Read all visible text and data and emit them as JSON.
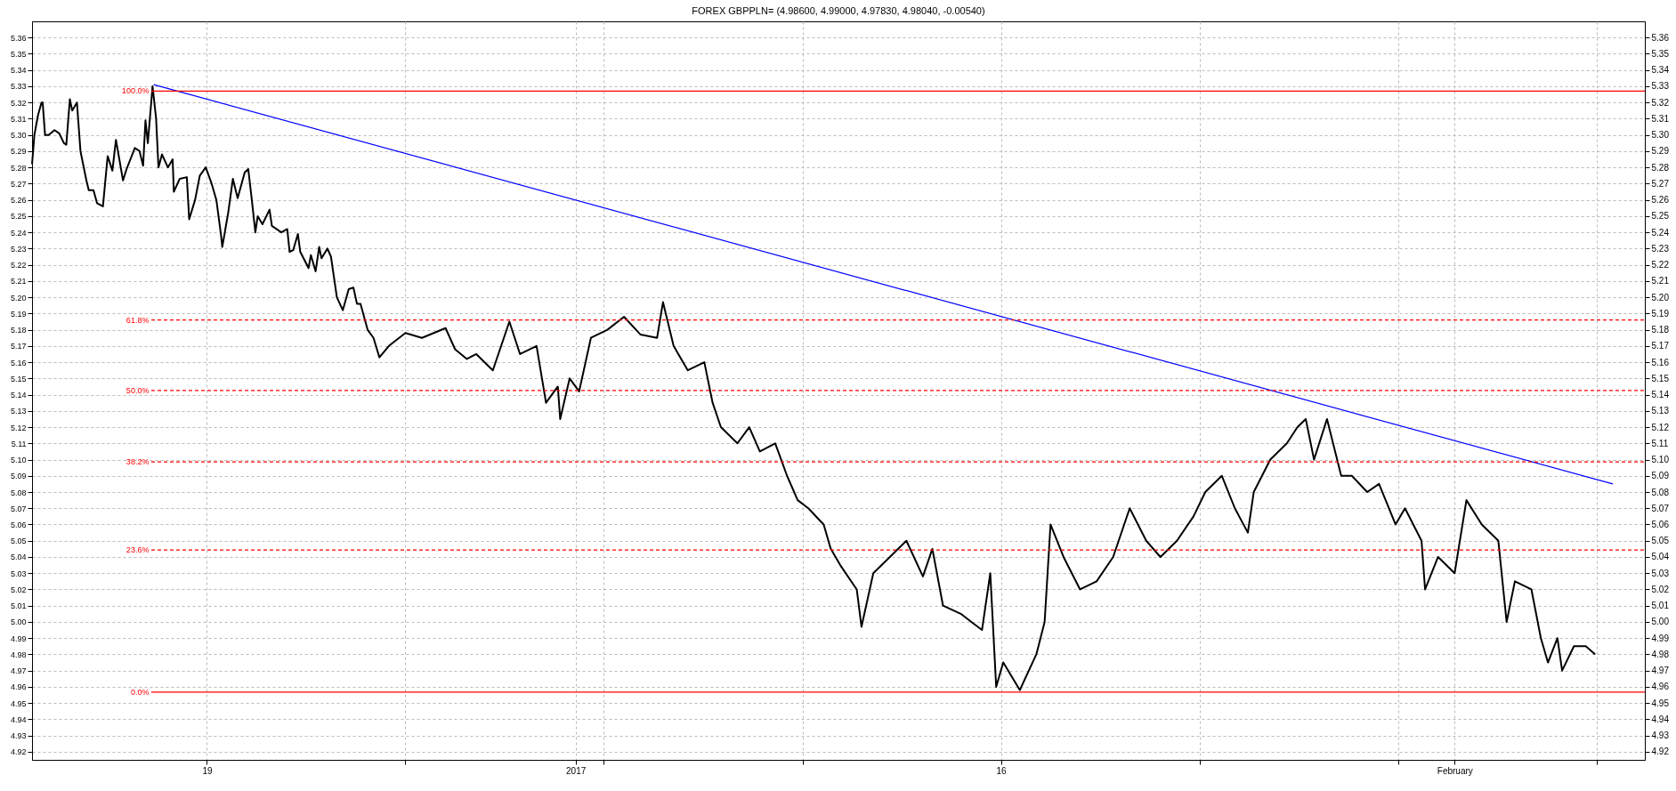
{
  "chart_data": {
    "type": "line",
    "title": "FOREX GBPPLN= (4.98600, 4.99000, 4.97830, 4.98040, -0.00540)",
    "xlim": [
      "2016-12-12T20:00",
      "2017-02-07T17:00"
    ],
    "xticks": [
      {
        "value": "2016-12-19",
        "label": "19"
      },
      {
        "value": "2016-12-26",
        "label": null
      },
      {
        "value": "2017-01-01",
        "label": "2017"
      },
      {
        "value": "2017-01-02",
        "label": null
      },
      {
        "value": "2017-01-09",
        "label": null
      },
      {
        "value": "2017-01-16",
        "label": "16"
      },
      {
        "value": "2017-01-23",
        "label": null
      },
      {
        "value": "2017-01-30",
        "label": null
      },
      {
        "value": "2017-02-01",
        "label": "February"
      },
      {
        "value": "2017-02-06",
        "label": null
      }
    ],
    "ylim": [
      4.915,
      5.37
    ],
    "yticks": [
      {
        "value": 4.92,
        "label": "4.92"
      },
      {
        "value": 4.93,
        "label": "4.93"
      },
      {
        "value": 4.94,
        "label": "4.94"
      },
      {
        "value": 4.95,
        "label": "4.95"
      },
      {
        "value": 4.96,
        "label": "4.96"
      },
      {
        "value": 4.97,
        "label": "4.97"
      },
      {
        "value": 4.98,
        "label": "4.98"
      },
      {
        "value": 4.99,
        "label": "4.99"
      },
      {
        "value": 5.0,
        "label": "5.00"
      },
      {
        "value": 5.01,
        "label": "5.01"
      },
      {
        "value": 5.02,
        "label": "5.02"
      },
      {
        "value": 5.03,
        "label": "5.03"
      },
      {
        "value": 5.04,
        "label": "5.04"
      },
      {
        "value": 5.05,
        "label": "5.05"
      },
      {
        "value": 5.06,
        "label": "5.06"
      },
      {
        "value": 5.07,
        "label": "5.07"
      },
      {
        "value": 5.08,
        "label": "5.08"
      },
      {
        "value": 5.09,
        "label": "5.09"
      },
      {
        "value": 5.1,
        "label": "5.10"
      },
      {
        "value": 5.11,
        "label": "5.11"
      },
      {
        "value": 5.12,
        "label": "5.12"
      },
      {
        "value": 5.13,
        "label": "5.13"
      },
      {
        "value": 5.14,
        "label": "5.14"
      },
      {
        "value": 5.15,
        "label": "5.15"
      },
      {
        "value": 5.16,
        "label": "5.16"
      },
      {
        "value": 5.17,
        "label": "5.17"
      },
      {
        "value": 5.18,
        "label": "5.18"
      },
      {
        "value": 5.19,
        "label": "5.19"
      },
      {
        "value": 5.2,
        "label": "5.20"
      },
      {
        "value": 5.21,
        "label": "5.21"
      },
      {
        "value": 5.22,
        "label": "5.22"
      },
      {
        "value": 5.23,
        "label": "5.23"
      },
      {
        "value": 5.24,
        "label": "5.24"
      },
      {
        "value": 5.25,
        "label": "5.25"
      },
      {
        "value": 5.26,
        "label": "5.26"
      },
      {
        "value": 5.27,
        "label": "5.27"
      },
      {
        "value": 5.28,
        "label": "5.28"
      },
      {
        "value": 5.29,
        "label": "5.29"
      },
      {
        "value": 5.3,
        "label": "5.30"
      },
      {
        "value": 5.31,
        "label": "5.31"
      },
      {
        "value": 5.32,
        "label": "5.32"
      },
      {
        "value": 5.33,
        "label": "5.33"
      },
      {
        "value": 5.34,
        "label": "5.34"
      },
      {
        "value": 5.35,
        "label": "5.35"
      },
      {
        "value": 5.36,
        "label": "5.36"
      }
    ],
    "y2lim": [
      4.915,
      5.37
    ],
    "y2ticks": [
      {
        "value": 4.92,
        "label": "4.92"
      },
      {
        "value": 4.93,
        "label": "4.93"
      },
      {
        "value": 4.94,
        "label": "4.94"
      },
      {
        "value": 4.95,
        "label": "4.95"
      },
      {
        "value": 4.96,
        "label": "4.96"
      },
      {
        "value": 4.97,
        "label": "4.97"
      },
      {
        "value": 4.98,
        "label": "4.98"
      },
      {
        "value": 4.99,
        "label": "4.99"
      },
      {
        "value": 5.0,
        "label": "5.00"
      },
      {
        "value": 5.01,
        "label": "5.01"
      },
      {
        "value": 5.02,
        "label": "5.02"
      },
      {
        "value": 5.03,
        "label": "5.03"
      },
      {
        "value": 5.04,
        "label": "5.04"
      },
      {
        "value": 5.05,
        "label": "5.05"
      },
      {
        "value": 5.06,
        "label": "5.06"
      },
      {
        "value": 5.07,
        "label": "5.07"
      },
      {
        "value": 5.08,
        "label": "5.08"
      },
      {
        "value": 5.09,
        "label": "5.09"
      },
      {
        "value": 5.1,
        "label": "5.10"
      },
      {
        "value": 5.11,
        "label": "5.11"
      },
      {
        "value": 5.12,
        "label": "5.12"
      },
      {
        "value": 5.13,
        "label": "5.13"
      },
      {
        "value": 5.14,
        "label": "5.14"
      },
      {
        "value": 5.15,
        "label": "5.15"
      },
      {
        "value": 5.16,
        "label": "5.16"
      },
      {
        "value": 5.17,
        "label": "5.17"
      },
      {
        "value": 5.18,
        "label": "5.18"
      },
      {
        "value": 5.19,
        "label": "5.19"
      },
      {
        "value": 5.2,
        "label": "5.20"
      },
      {
        "value": 5.21,
        "label": "5.21"
      },
      {
        "value": 5.22,
        "label": "5.22"
      },
      {
        "value": 5.23,
        "label": "5.23"
      },
      {
        "value": 5.24,
        "label": "5.24"
      },
      {
        "value": 5.25,
        "label": "5.25"
      },
      {
        "value": 5.26,
        "label": "5.26"
      },
      {
        "value": 5.27,
        "label": "5.27"
      },
      {
        "value": 5.28,
        "label": "5.28"
      },
      {
        "value": 5.29,
        "label": "5.29"
      },
      {
        "value": 5.3,
        "label": "5.30"
      },
      {
        "value": 5.31,
        "label": "5.31"
      },
      {
        "value": 5.32,
        "label": "5.32"
      },
      {
        "value": 5.33,
        "label": "5.33"
      },
      {
        "value": 5.34,
        "label": "5.34"
      },
      {
        "value": 5.35,
        "label": "5.35"
      },
      {
        "value": 5.36,
        "label": "5.36"
      }
    ],
    "grid": true,
    "series": [
      {
        "color": "#000000",
        "x": [
          "2016-12-12T20:00",
          "2016-12-12T22:00",
          "2016-12-13T01:00",
          "2016-12-13T04:00",
          "2016-12-13T05:00",
          "2016-12-13T07:00",
          "2016-12-13T10:00",
          "2016-12-13T15:00",
          "2016-12-13T19:00",
          "2016-12-13T23:00",
          "2016-12-14T01:00",
          "2016-12-14T04:00",
          "2016-12-14T06:00",
          "2016-12-14T10:00",
          "2016-12-14T13:00",
          "2016-12-14T18:00",
          "2016-12-14T20:00",
          "2016-12-15T00:00",
          "2016-12-15T03:00",
          "2016-12-15T08:00",
          "2016-12-15T12:00",
          "2016-12-15T16:00",
          "2016-12-15T19:00",
          "2016-12-16T01:00",
          "2016-12-16T04:00",
          "2016-12-16T11:00",
          "2016-12-16T15:00",
          "2016-12-16T18:00",
          "2016-12-16T20:00",
          "2016-12-16T22:00",
          "2016-12-17T02:00",
          "2016-12-17T05:00",
          "2016-12-17T07:00",
          "2016-12-17T10:00",
          "2016-12-17T15:00",
          "2016-12-17T19:00",
          "2016-12-17T20:00",
          "2016-12-18T01:00",
          "2016-12-18T07:00",
          "2016-12-18T09:00",
          "2016-12-18T14:00",
          "2016-12-18T18:00",
          "2016-12-18T23:00",
          "2016-12-19T04:00",
          "2016-12-19T08:00",
          "2016-12-19T12:00",
          "2016-12-19T13:00",
          "2016-12-19T18:00",
          "2016-12-19T22:00",
          "2016-12-20T02:00",
          "2016-12-20T08:00",
          "2016-12-20T11:00",
          "2016-12-20T14:00",
          "2016-12-20T17:00",
          "2016-12-20T19:00",
          "2016-12-20T23:00",
          "2016-12-21T05:00",
          "2016-12-21T07:00",
          "2016-12-21T15:00",
          "2016-12-21T20:00",
          "2016-12-21T22:00",
          "2016-12-22T01:00",
          "2016-12-22T05:00",
          "2016-12-22T07:00",
          "2016-12-22T14:00",
          "2016-12-22T16:00",
          "2016-12-22T20:00",
          "2016-12-22T23:00",
          "2016-12-23T01:00",
          "2016-12-23T06:00",
          "2016-12-23T09:00",
          "2016-12-23T14:00",
          "2016-12-23T19:00",
          "2016-12-24T00:00",
          "2016-12-24T04:00",
          "2016-12-24T07:00",
          "2016-12-24T10:00",
          "2016-12-24T16:00",
          "2016-12-24T21:00",
          "2016-12-25T02:00",
          "2016-12-25T10:00",
          "2016-12-26T00:00",
          "2016-12-26T14:00",
          "2016-12-27T10:00",
          "2016-12-27T18:00",
          "2016-12-28T04:00",
          "2016-12-28T12:00",
          "2016-12-29T02:00",
          "2016-12-29T16:00",
          "2016-12-30T01:00",
          "2016-12-30T15:00",
          "2016-12-30T23:00",
          "2016-12-31T09:00",
          "2016-12-31T11:00",
          "2016-12-31T19:00",
          "2017-01-01T03:00",
          "2017-01-01T13:00",
          "2017-01-02T03:00",
          "2017-01-02T17:00",
          "2017-01-03T07:00",
          "2017-01-03T21:00",
          "2017-01-04T02:00",
          "2017-01-04T11:00",
          "2017-01-04T23:00",
          "2017-01-05T13:00",
          "2017-01-05T20:00",
          "2017-01-06T03:00",
          "2017-01-06T17:00",
          "2017-01-07T03:00",
          "2017-01-07T12:00",
          "2017-01-08T01:00",
          "2017-01-08T11:00",
          "2017-01-08T20:00",
          "2017-01-09T05:00",
          "2017-01-09T18:00",
          "2017-01-10T00:00",
          "2017-01-10T08:00",
          "2017-01-10T22:00",
          "2017-01-11T02:00",
          "2017-01-11T12:00",
          "2017-01-12T02:00",
          "2017-01-12T16:00",
          "2017-01-13T06:00",
          "2017-01-13T14:00",
          "2017-01-13T23:00",
          "2017-01-14T14:00",
          "2017-01-14T23:00",
          "2017-01-15T08:00",
          "2017-01-15T15:00",
          "2017-01-15T20:00",
          "2017-01-16T02:00",
          "2017-01-16T16:00",
          "2017-01-17T06:00",
          "2017-01-17T13:00",
          "2017-01-17T18:00",
          "2017-01-18T05:00",
          "2017-01-18T19:00",
          "2017-01-19T09:00",
          "2017-01-19T23:00",
          "2017-01-20T13:00",
          "2017-01-21T03:00",
          "2017-01-21T15:00",
          "2017-01-22T05:00",
          "2017-01-22T19:00",
          "2017-01-23T05:00",
          "2017-01-23T19:00",
          "2017-01-24T06:00",
          "2017-01-24T17:00",
          "2017-01-24T22:00",
          "2017-01-25T12:00",
          "2017-01-26T02:00",
          "2017-01-26T11:00",
          "2017-01-26T18:00",
          "2017-01-27T01:00",
          "2017-01-27T12:00",
          "2017-01-28T00:00",
          "2017-01-28T09:00",
          "2017-01-28T22:00",
          "2017-01-29T08:00",
          "2017-01-29T22:00",
          "2017-01-30T06:00",
          "2017-01-30T20:00",
          "2017-01-30T23:00",
          "2017-01-31T10:00",
          "2017-02-01T00:00",
          "2017-02-01T10:00",
          "2017-02-01T23:00",
          "2017-02-02T13:00",
          "2017-02-02T20:00",
          "2017-02-03T03:00",
          "2017-02-03T17:00",
          "2017-02-04T01:00",
          "2017-02-04T07:00",
          "2017-02-04T15:00",
          "2017-02-04T19:00",
          "2017-02-05T05:00",
          "2017-02-05T15:00",
          "2017-02-05T23:00"
        ],
        "values": [
          5.282,
          5.3,
          5.312,
          5.32,
          5.32,
          5.3,
          5.3,
          5.303,
          5.301,
          5.295,
          5.294,
          5.322,
          5.315,
          5.32,
          5.29,
          5.272,
          5.266,
          5.266,
          5.258,
          5.256,
          5.287,
          5.278,
          5.297,
          5.272,
          5.279,
          5.292,
          5.29,
          5.281,
          5.309,
          5.295,
          5.33,
          5.31,
          5.28,
          5.288,
          5.28,
          5.285,
          5.265,
          5.273,
          5.274,
          5.248,
          5.26,
          5.275,
          5.28,
          5.27,
          5.26,
          5.238,
          5.231,
          5.252,
          5.273,
          5.261,
          5.277,
          5.279,
          5.26,
          5.24,
          5.25,
          5.245,
          5.254,
          5.244,
          5.24,
          5.242,
          5.228,
          5.229,
          5.239,
          5.228,
          5.218,
          5.226,
          5.216,
          5.231,
          5.224,
          5.23,
          5.225,
          5.2,
          5.192,
          5.205,
          5.206,
          5.196,
          5.196,
          5.18,
          5.175,
          5.163,
          5.17,
          5.178,
          5.175,
          5.181,
          5.168,
          5.162,
          5.165,
          5.155,
          5.185,
          5.165,
          5.17,
          5.135,
          5.145,
          5.125,
          5.15,
          5.142,
          5.175,
          5.18,
          5.188,
          5.177,
          5.175,
          5.197,
          5.17,
          5.155,
          5.16,
          5.135,
          5.12,
          5.11,
          5.12,
          5.105,
          5.11,
          5.09,
          5.075,
          5.07,
          5.06,
          5.045,
          5.035,
          5.02,
          4.997,
          5.03,
          5.04,
          5.05,
          5.028,
          5.045,
          5.01,
          5.005,
          5.0,
          4.995,
          5.03,
          4.96,
          4.975,
          4.958,
          4.98,
          5.0,
          5.06,
          5.04,
          5.02,
          5.025,
          5.04,
          5.07,
          5.05,
          5.04,
          5.05,
          5.065,
          5.08,
          5.09,
          5.07,
          5.055,
          5.08,
          5.1,
          5.11,
          5.12,
          5.125,
          5.1,
          5.125,
          5.09,
          5.09,
          5.08,
          5.085,
          5.06,
          5.07,
          5.05,
          5.02,
          5.04,
          5.03,
          5.075,
          5.06,
          5.05,
          5.0,
          5.025,
          5.02,
          4.99,
          4.975,
          4.99,
          4.97,
          4.985,
          4.985,
          4.98
        ]
      },
      {
        "color": "#0000ff",
        "x": [
          "2016-12-17T03:00",
          "2017-02-06T14:00"
        ],
        "values": [
          5.331,
          5.085
        ]
      }
    ],
    "ref_lines": [
      {
        "axis": "y",
        "value": 5.327,
        "color": "#ff0000",
        "line_style": "solid"
      },
      {
        "axis": "y",
        "value": 5.186,
        "color": "#ff0000",
        "line_style": "dashed"
      },
      {
        "axis": "y",
        "value": 5.1426,
        "color": "#ff0000",
        "line_style": "dashed"
      },
      {
        "axis": "y",
        "value": 5.0986,
        "color": "#ff0000",
        "line_style": "dashed"
      },
      {
        "axis": "y",
        "value": 5.0443,
        "color": "#ff0000",
        "line_style": "dashed"
      },
      {
        "axis": "y",
        "value": 4.9567,
        "color": "#ff0000",
        "line_style": "solid"
      }
    ],
    "annotations": [
      {
        "text": "100.0%",
        "x": "2016-12-17T02:00",
        "y": 5.327
      },
      {
        "text": "61.8%",
        "x": "2016-12-17T02:00",
        "y": 5.186
      },
      {
        "text": "50.0%",
        "x": "2016-12-17T02:00",
        "y": 5.1426
      },
      {
        "text": "38.2%",
        "x": "2016-12-17T02:00",
        "y": 5.0986
      },
      {
        "text": "23.6%",
        "x": "2016-12-17T02:00",
        "y": 5.0443
      },
      {
        "text": "0.0%",
        "x": "2016-12-17T02:00",
        "y": 4.9567
      }
    ]
  }
}
